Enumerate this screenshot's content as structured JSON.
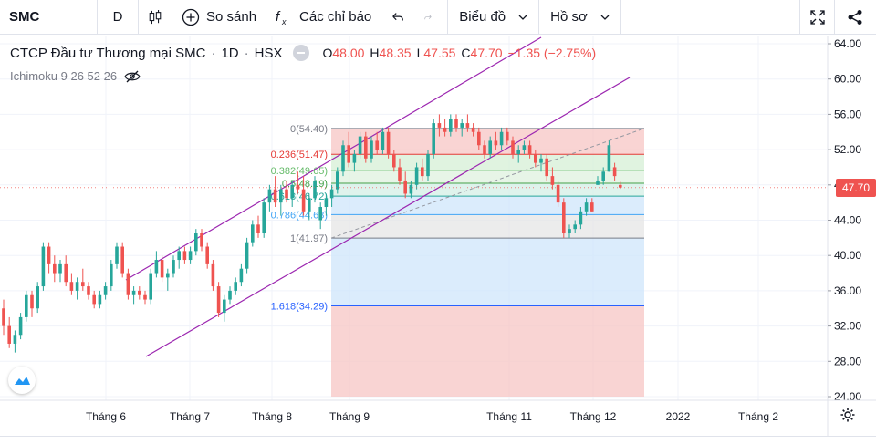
{
  "toolbar": {
    "symbol": "SMC",
    "interval": "D",
    "compare_label": "So sánh",
    "indicators_label": "Các chỉ báo",
    "chart_type_label": "Biểu đồ",
    "profile_label": "Hồ sơ"
  },
  "legend": {
    "name": "CTCP Đầu tư Thương mại SMC",
    "interval": "1D",
    "exchange": "HSX",
    "o_key": "O",
    "o_val": "48.00",
    "h_key": "H",
    "h_val": "48.35",
    "l_key": "L",
    "l_val": "47.55",
    "c_key": "C",
    "c_val": "47.70",
    "change": "−1.35 (−2.75%)",
    "indicator": "Ichimoku 9 26 52 26"
  },
  "last_price": "47.70",
  "colors": {
    "up": "#26a69a",
    "down": "#ef5350",
    "channel": "#9c27b0",
    "fib_red": "#f7c5c4",
    "fib_green": "#d5efd6",
    "fib_blue": "#cfe6fb",
    "fib_gray": "#e6e6e6"
  },
  "price_axis": {
    "ticks": [
      "64.00",
      "60.00",
      "56.00",
      "52.00",
      "48.00",
      "44.00",
      "40.00",
      "36.00",
      "32.00",
      "28.00",
      "24.00"
    ]
  },
  "time_axis": {
    "labels": [
      "Tháng 6",
      "Tháng 7",
      "Tháng 8",
      "Tháng 9",
      "Tháng 11",
      "Tháng 12",
      "2022",
      "Tháng 2"
    ]
  },
  "fib_levels": [
    {
      "label": "0(54.40)",
      "price": 54.4,
      "color": "#787b86"
    },
    {
      "label": "0.236(51.47)",
      "price": 51.47,
      "color": "#e53935"
    },
    {
      "label": "0.382(49.65)",
      "price": 49.65,
      "color": "#66bb6a"
    },
    {
      "label": "0.5(48.19)",
      "price": 48.19,
      "color": "#43a047"
    },
    {
      "label": "0.618(46.72)",
      "price": 46.72,
      "color": "#26a69a"
    },
    {
      "label": "0.786(44.63)",
      "price": 44.63,
      "color": "#42a5f5"
    },
    {
      "label": "1(41.97)",
      "price": 41.97,
      "color": "#787b86"
    },
    {
      "label": "1.618(34.29)",
      "price": 34.29,
      "color": "#2962ff"
    }
  ],
  "chart_data": {
    "type": "candlestick",
    "ylim": [
      24,
      64
    ],
    "candles": [
      [
        34,
        35,
        31,
        32
      ],
      [
        32,
        33,
        29.5,
        30
      ],
      [
        30,
        31.5,
        29,
        31
      ],
      [
        31,
        33.5,
        30.5,
        33
      ],
      [
        33,
        36,
        32.5,
        35.5
      ],
      [
        35.5,
        36,
        33,
        34
      ],
      [
        34,
        37,
        33.5,
        36.5
      ],
      [
        36.5,
        41.5,
        36,
        41
      ],
      [
        41,
        41.5,
        38,
        39
      ],
      [
        39,
        40,
        37,
        38
      ],
      [
        38,
        39.5,
        37,
        39
      ],
      [
        39,
        40,
        36.5,
        37
      ],
      [
        37,
        38,
        35.5,
        36
      ],
      [
        36,
        37.5,
        35,
        37
      ],
      [
        37,
        38.5,
        36,
        36.5
      ],
      [
        36.5,
        37,
        35,
        35.5
      ],
      [
        35.5,
        36,
        34,
        34.5
      ],
      [
        34.5,
        36,
        34,
        35.5
      ],
      [
        35.5,
        37,
        35,
        36.5
      ],
      [
        36.5,
        39.5,
        36,
        39
      ],
      [
        39,
        41.5,
        38.5,
        41
      ],
      [
        41,
        41.5,
        37.5,
        38
      ],
      [
        38,
        38.5,
        35,
        35.5
      ],
      [
        35.5,
        36.5,
        34.5,
        36
      ],
      [
        36,
        36.5,
        35,
        35.5
      ],
      [
        35.5,
        36,
        34.5,
        35
      ],
      [
        35,
        38.5,
        34.5,
        38
      ],
      [
        38,
        40.5,
        37.5,
        39.5
      ],
      [
        39.5,
        40,
        37,
        37.5
      ],
      [
        37.5,
        38.5,
        36,
        38
      ],
      [
        38,
        40,
        37.5,
        39.5
      ],
      [
        39.5,
        41,
        38.5,
        40.5
      ],
      [
        40.5,
        41,
        39,
        39.5
      ],
      [
        39.5,
        41,
        39,
        40.5
      ],
      [
        40.5,
        43,
        40,
        42.5
      ],
      [
        42.5,
        43,
        40.5,
        41
      ],
      [
        41,
        41.5,
        38.5,
        39
      ],
      [
        39,
        39.5,
        36,
        36.5
      ],
      [
        36.5,
        37,
        33,
        33.5
      ],
      [
        33.5,
        35.5,
        32.5,
        35
      ],
      [
        35,
        36.5,
        34.5,
        36
      ],
      [
        36,
        37.5,
        35.5,
        37
      ],
      [
        37,
        39,
        36.5,
        38.5
      ],
      [
        38.5,
        42,
        38,
        41.5
      ],
      [
        41.5,
        44,
        41,
        43.5
      ],
      [
        43.5,
        44.5,
        42,
        42.5
      ],
      [
        42.5,
        46.5,
        42,
        46
      ],
      [
        46,
        48,
        45,
        47.5
      ],
      [
        47.5,
        49,
        45.5,
        46
      ],
      [
        46,
        48,
        44.5,
        47.5
      ],
      [
        47.5,
        48.5,
        46,
        46.5
      ],
      [
        46.5,
        48.5,
        45.5,
        48
      ],
      [
        48,
        49.5,
        47,
        47.5
      ],
      [
        47.5,
        49,
        44.5,
        45
      ],
      [
        45,
        47,
        44,
        46.5
      ],
      [
        46.5,
        49,
        46,
        48.5
      ],
      [
        44,
        46,
        43,
        45.5
      ],
      [
        45.5,
        47,
        44.5,
        46.5
      ],
      [
        46.5,
        48,
        45.5,
        47.5
      ],
      [
        47.5,
        50,
        47,
        49.5
      ],
      [
        49.5,
        53,
        49,
        52.5
      ],
      [
        52.5,
        54,
        50,
        50.5
      ],
      [
        50.5,
        52,
        49.5,
        51.5
      ],
      [
        51.5,
        54,
        51,
        53.5
      ],
      [
        53.5,
        54,
        50.5,
        51
      ],
      [
        51,
        53.5,
        50.5,
        53
      ],
      [
        53,
        54,
        51.5,
        52
      ],
      [
        52,
        54.5,
        51.5,
        54
      ],
      [
        54,
        54.5,
        51,
        51.5
      ],
      [
        51.5,
        52,
        49.5,
        50
      ],
      [
        50,
        51,
        48,
        48.5
      ],
      [
        48.5,
        49.5,
        46.5,
        47
      ],
      [
        47,
        48.5,
        46.5,
        48
      ],
      [
        48,
        50.5,
        47.5,
        50
      ],
      [
        50,
        51,
        48.5,
        49
      ],
      [
        49,
        52,
        48.5,
        51.5
      ],
      [
        51.5,
        55.5,
        51,
        55
      ],
      [
        55,
        56,
        53.5,
        54.5
      ],
      [
        54.5,
        55.5,
        53.5,
        54
      ],
      [
        54,
        56,
        53.5,
        55.5
      ],
      [
        55.5,
        56,
        54,
        54.5
      ],
      [
        54.5,
        55.5,
        53.5,
        55
      ],
      [
        55,
        56,
        54,
        54.5
      ],
      [
        54.5,
        55,
        53.5,
        54
      ],
      [
        54,
        54.5,
        52,
        52.5
      ],
      [
        52.5,
        53,
        51,
        51.5
      ],
      [
        51.5,
        53.5,
        51,
        53
      ],
      [
        53,
        54,
        52,
        52.5
      ],
      [
        52.5,
        54.5,
        52,
        54
      ],
      [
        54,
        54.5,
        52.5,
        53
      ],
      [
        53,
        53.5,
        51,
        51.5
      ],
      [
        51.5,
        52.5,
        50.5,
        52
      ],
      [
        52,
        53,
        51.5,
        52.5
      ],
      [
        52.5,
        53,
        51,
        51.5
      ],
      [
        51.5,
        52,
        50,
        50.5
      ],
      [
        50.5,
        51.5,
        49.5,
        51
      ],
      [
        51,
        51.5,
        48.5,
        49
      ],
      [
        49,
        50,
        47.5,
        48
      ],
      [
        48,
        48.5,
        45.5,
        46
      ],
      [
        46,
        46.5,
        42,
        42.5
      ],
      [
        42.5,
        43.5,
        42,
        43
      ],
      [
        43,
        44,
        42.5,
        43.5
      ],
      [
        43.5,
        45.5,
        43,
        45
      ],
      [
        45,
        46.5,
        44.5,
        46
      ],
      [
        46,
        46.5,
        45,
        45
      ],
      [
        48,
        49,
        48,
        48.5
      ],
      [
        48.5,
        50,
        48,
        49.5
      ],
      [
        49.5,
        53,
        49.5,
        52.5
      ],
      [
        50,
        50.5,
        48.5,
        49
      ],
      [
        48,
        48.35,
        47.55,
        47.7
      ]
    ]
  }
}
